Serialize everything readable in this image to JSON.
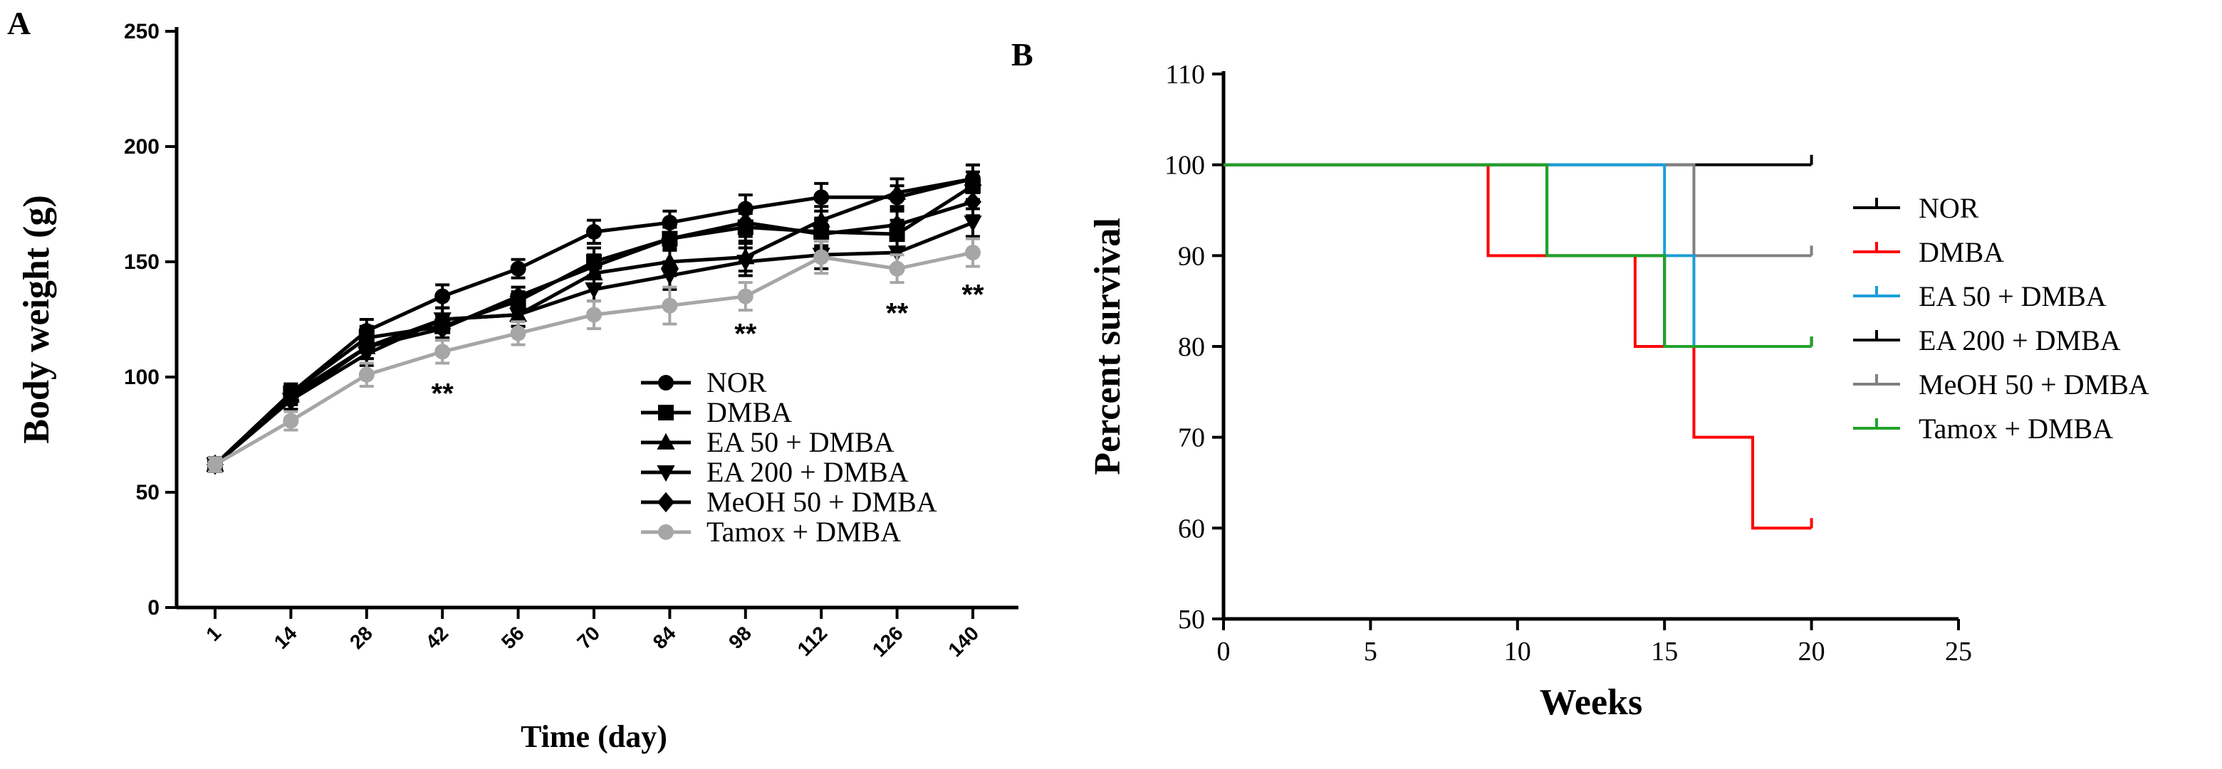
{
  "chart_data": [
    {
      "panel": "A",
      "type": "line",
      "xlabel": "Time (day)",
      "ylabel": "Body weight (g)",
      "categories": [
        "1",
        "14",
        "28",
        "42",
        "56",
        "70",
        "84",
        "98",
        "112",
        "126",
        "140"
      ],
      "ylim": [
        0,
        250
      ],
      "yticks": [
        "0",
        "50",
        "100",
        "150",
        "200",
        "250"
      ],
      "series": [
        {
          "name": "NOR",
          "marker": "circle",
          "color": "#000000",
          "values": [
            62,
            93,
            120,
            135,
            147,
            163,
            167,
            173,
            178,
            178,
            186
          ],
          "errors": [
            3,
            4,
            5,
            5,
            4,
            5,
            5,
            6,
            6,
            5,
            6
          ]
        },
        {
          "name": "DMBA",
          "marker": "square",
          "color": "#000000",
          "values": [
            62,
            93,
            117,
            122,
            133,
            150,
            160,
            165,
            163,
            162,
            183
          ],
          "errors": [
            3,
            4,
            5,
            5,
            4,
            6,
            5,
            6,
            6,
            6,
            6
          ]
        },
        {
          "name": "EA 50 + DMBA",
          "marker": "triangle-up",
          "color": "#000000",
          "values": [
            62,
            92,
            113,
            125,
            127,
            145,
            150,
            152,
            168,
            180,
            186
          ],
          "errors": [
            3,
            4,
            5,
            5,
            5,
            5,
            6,
            6,
            6,
            6,
            6
          ]
        },
        {
          "name": "EA 200 + DMBA",
          "marker": "triangle-down",
          "color": "#000000",
          "values": [
            62,
            90,
            110,
            125,
            127,
            138,
            144,
            150,
            153,
            154,
            167
          ],
          "errors": [
            3,
            4,
            5,
            5,
            5,
            5,
            6,
            6,
            6,
            6,
            6
          ]
        },
        {
          "name": "MeOH 50 + DMBA",
          "marker": "diamond",
          "color": "#000000",
          "values": [
            62,
            90,
            113,
            121,
            135,
            148,
            160,
            167,
            162,
            166,
            176
          ],
          "errors": [
            3,
            4,
            5,
            5,
            4,
            5,
            5,
            6,
            6,
            6,
            6
          ]
        },
        {
          "name": "Tamox + DMBA",
          "marker": "circle",
          "color": "#a6a6a6",
          "values": [
            62,
            81,
            101,
            111,
            119,
            127,
            131,
            135,
            152,
            147,
            154
          ],
          "errors": [
            3,
            4,
            5,
            5,
            5,
            6,
            8,
            6,
            7,
            6,
            6
          ]
        }
      ],
      "annotations": [
        {
          "text": "**",
          "category": "42",
          "y": 93
        },
        {
          "text": "**",
          "category": "98",
          "y": 119
        },
        {
          "text": "**",
          "category": "126",
          "y": 128
        },
        {
          "text": "**",
          "category": "140",
          "y": 136
        }
      ],
      "legend": "bottom-right"
    },
    {
      "panel": "B",
      "type": "line",
      "step": true,
      "xlabel": "Weeks",
      "ylabel": "Percent survival",
      "xlim": [
        0,
        25
      ],
      "ylim": [
        50,
        110
      ],
      "xticks": [
        "0",
        "5",
        "10",
        "15",
        "20",
        "25"
      ],
      "yticks": [
        "50",
        "60",
        "70",
        "80",
        "90",
        "100",
        "110"
      ],
      "series": [
        {
          "name": "NOR",
          "color": "#000000",
          "x": [
            0,
            20
          ],
          "y": [
            100,
            100
          ]
        },
        {
          "name": "DMBA",
          "color": "#ff0000",
          "x": [
            0,
            9,
            14,
            16,
            18,
            20
          ],
          "y": [
            100,
            90,
            80,
            70,
            60,
            60
          ]
        },
        {
          "name": "EA 50 + DMBA",
          "color": "#1a9ed8",
          "x": [
            0,
            15,
            16,
            20
          ],
          "y": [
            100,
            90,
            80,
            80
          ]
        },
        {
          "name": "EA 200 + DMBA",
          "color": "#000000",
          "x": [
            0,
            11,
            15,
            20
          ],
          "y": [
            100,
            90,
            80,
            80
          ]
        },
        {
          "name": "MeOH 50 + DMBA",
          "color": "#808080",
          "x": [
            0,
            16,
            20
          ],
          "y": [
            100,
            90,
            90
          ]
        },
        {
          "name": "Tamox + DMBA",
          "color": "#22a22a",
          "x": [
            0,
            11,
            15,
            20
          ],
          "y": [
            100,
            90,
            80,
            80
          ]
        }
      ],
      "legend": "right"
    }
  ],
  "figure": {
    "panel_a_label": "A",
    "panel_b_label": "B"
  }
}
